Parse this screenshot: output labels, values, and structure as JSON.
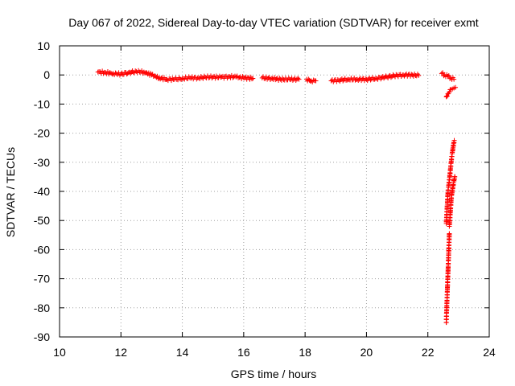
{
  "chart_data": {
    "type": "scatter",
    "title": "Day 067 of 2022, Sidereal Day-to-day VTEC variation (SDTVAR) for receiver exmt",
    "xlabel": "GPS time / hours",
    "ylabel": "SDTVAR / TECUs",
    "xlim": [
      10,
      24
    ],
    "ylim": [
      -90,
      10
    ],
    "xticks": [
      10,
      12,
      14,
      16,
      18,
      20,
      22,
      24
    ],
    "yticks": [
      10,
      0,
      -10,
      -20,
      -30,
      -40,
      -50,
      -60,
      -70,
      -80,
      -90
    ],
    "grid": true,
    "marker": "+",
    "series_color": "#ff0000",
    "series": [
      {
        "name": "SDTVAR",
        "segments": [
          {
            "x": [
              11.25,
              11.5,
              11.75,
              12.0,
              12.25,
              12.5,
              12.75,
              13.0,
              13.25,
              13.5,
              13.75,
              14.0,
              14.25,
              14.5,
              14.75,
              15.0,
              15.25,
              15.5,
              15.75,
              16.0,
              16.3
            ],
            "y": [
              1.0,
              0.8,
              0.5,
              0.3,
              0.8,
              1.2,
              1.0,
              0.0,
              -1.0,
              -1.5,
              -1.5,
              -1.2,
              -1.0,
              -1.0,
              -0.8,
              -0.7,
              -0.8,
              -0.6,
              -0.7,
              -1.0,
              -1.2
            ]
          },
          {
            "x": [
              16.6,
              16.9,
              17.2,
              17.5,
              17.8
            ],
            "y": [
              -1.0,
              -1.2,
              -1.5,
              -1.5,
              -1.5
            ]
          },
          {
            "x": [
              18.05,
              18.2,
              18.35
            ],
            "y": [
              -1.5,
              -2.0,
              -2.0
            ]
          },
          {
            "x": [
              18.85,
              19.1,
              19.4,
              19.7,
              20.0,
              20.3,
              20.6,
              20.9,
              21.2,
              21.5,
              21.7
            ],
            "y": [
              -2.0,
              -1.8,
              -1.5,
              -1.5,
              -1.5,
              -1.2,
              -0.8,
              -0.3,
              0.0,
              0.0,
              -0.2
            ]
          },
          {
            "x": [
              22.45,
              22.55,
              22.65,
              22.75,
              22.85
            ],
            "y": [
              0.5,
              0.0,
              -0.5,
              -1.0,
              -1.5
            ]
          },
          {
            "x": [
              22.6,
              22.65,
              22.7,
              22.75,
              22.8,
              22.85,
              22.9
            ],
            "y": [
              -7.5,
              -6.5,
              -5.8,
              -5.0,
              -4.8,
              -4.5,
              -4.3
            ]
          },
          {
            "x": [
              22.6,
              22.61,
              22.62,
              22.63,
              22.64,
              22.65,
              22.66,
              22.68,
              22.7,
              22.72,
              22.74,
              22.76,
              22.78,
              22.8,
              22.82,
              22.84,
              22.86
            ],
            "y": [
              -51.0,
              -49.0,
              -47.0,
              -45.0,
              -43.0,
              -41.0,
              -39.5,
              -38.0,
              -36.0,
              -34.0,
              -32.0,
              -30.0,
              -28.0,
              -26.5,
              -25.0,
              -23.5,
              -22.5
            ]
          },
          {
            "x": [
              22.7,
              22.72,
              22.74,
              22.76,
              22.78,
              22.8,
              22.82,
              22.84,
              22.86,
              22.88
            ],
            "y": [
              -52.0,
              -49.0,
              -46.0,
              -43.0,
              -41.0,
              -39.5,
              -38.0,
              -37.0,
              -36.0,
              -35.0
            ]
          },
          {
            "x": [
              22.6,
              22.61,
              22.62,
              22.63,
              22.64,
              22.65,
              22.66,
              22.67,
              22.68,
              22.69,
              22.7
            ],
            "y": [
              -85.0,
              -81.5,
              -78.5,
              -75.5,
              -72.5,
              -69.5,
              -66.5,
              -63.5,
              -60.5,
              -57.5,
              -54.5
            ]
          }
        ]
      }
    ]
  }
}
